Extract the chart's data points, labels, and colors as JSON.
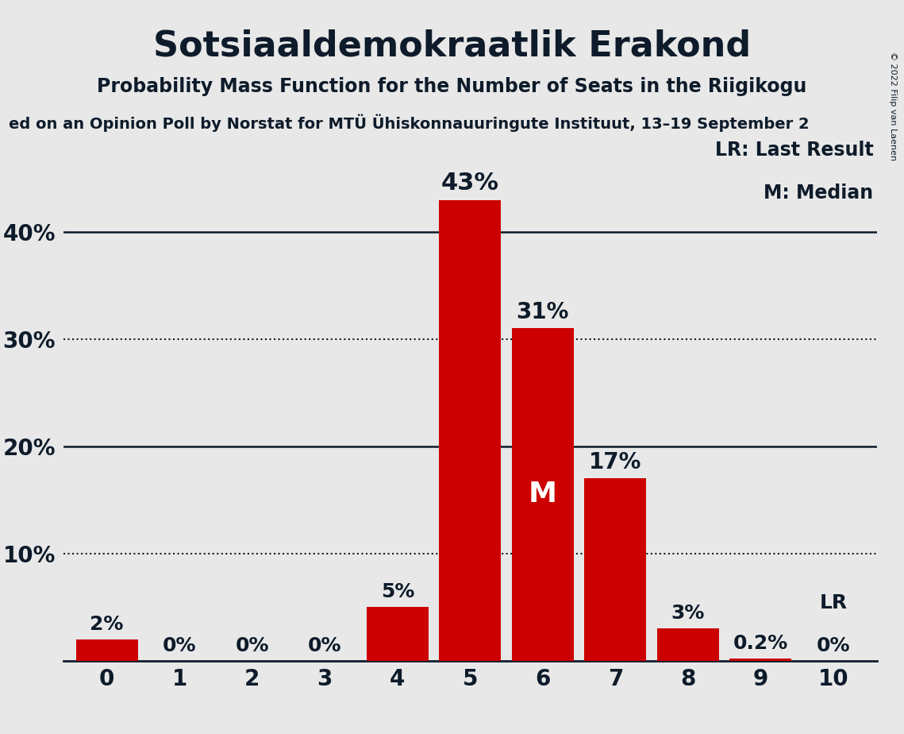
{
  "title": "Sotsiaaldemokraatlik Erakond",
  "subtitle": "Probability Mass Function for the Number of Seats in the Riigikogu",
  "source_line": "ed on an Opinion Poll by Norstat for MTÜ Ühiskonnauuringute Instituut, 13–19 September 2",
  "copyright": "© 2022 Filip van Laenen",
  "categories": [
    0,
    1,
    2,
    3,
    4,
    5,
    6,
    7,
    8,
    9,
    10
  ],
  "values": [
    2,
    0,
    0,
    0,
    5,
    43,
    31,
    17,
    3,
    0.2,
    0
  ],
  "labels": [
    "2%",
    "0%",
    "0%",
    "0%",
    "5%",
    "43%",
    "31%",
    "17%",
    "3%",
    "0.2%",
    "0%"
  ],
  "bar_color": "#cc0000",
  "background_color": "#e8e8e8",
  "text_color": "#0d1b2a",
  "median_bar": 6,
  "median_label": "M",
  "lr_bar": 10,
  "lr_label": "LR",
  "legend_lr": "LR: Last Result",
  "legend_m": "M: Median",
  "yticks": [
    0,
    10,
    20,
    30,
    40
  ],
  "yticklabels": [
    "",
    "10%",
    "20%",
    "30%",
    "40%"
  ],
  "ylim": [
    0,
    50
  ],
  "dotted_lines": [
    10,
    30
  ],
  "solid_lines": [
    20,
    40
  ]
}
